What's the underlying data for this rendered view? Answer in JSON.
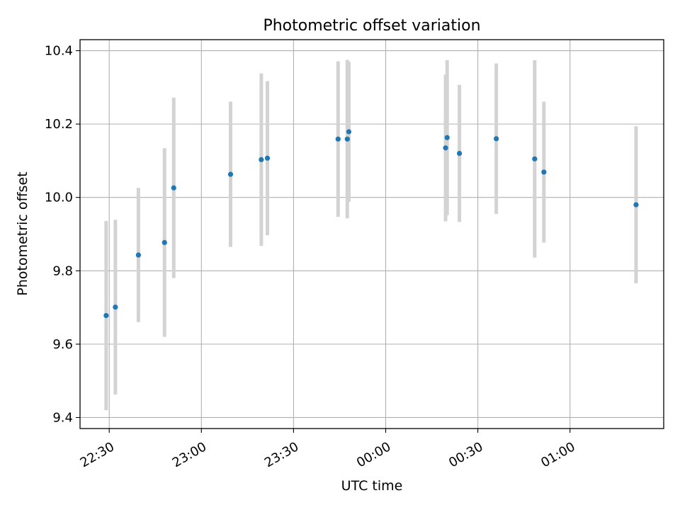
{
  "chart_data": {
    "type": "scatter",
    "title": "Photometric offset variation",
    "xlabel": "UTC time",
    "ylabel": "Photometric offset",
    "x_tick_labels": [
      "22:30",
      "23:00",
      "23:30",
      "00:00",
      "00:30",
      "01:00"
    ],
    "x_tick_times": [
      "2000-01-01T22:30",
      "2000-01-01T23:00",
      "2000-01-01T23:30",
      "2000-01-02T00:00",
      "2000-01-02T00:30",
      "2000-01-02T01:00"
    ],
    "y_tick_labels": [
      "9.4",
      "9.6",
      "9.8",
      "10.0",
      "10.2",
      "10.4"
    ],
    "y_ticks": [
      9.4,
      9.6,
      9.8,
      10.0,
      10.2,
      10.4
    ],
    "xlim": [
      "2000-01-01T22:20:30",
      "2000-01-02T01:30:30"
    ],
    "ylim": [
      9.37,
      10.43
    ],
    "grid": true,
    "marker_color": "#1f77b4",
    "errorbar_color": "#d3d3d3",
    "points": [
      {
        "t": "2000-01-01T22:29:00",
        "y": 9.678,
        "yerr": 0.258
      },
      {
        "t": "2000-01-01T22:32:00",
        "y": 9.701,
        "yerr": 0.238
      },
      {
        "t": "2000-01-01T22:39:30",
        "y": 9.843,
        "yerr": 0.183
      },
      {
        "t": "2000-01-01T22:48:00",
        "y": 9.877,
        "yerr": 0.257
      },
      {
        "t": "2000-01-01T22:51:00",
        "y": 10.026,
        "yerr": 0.246
      },
      {
        "t": "2000-01-01T23:09:30",
        "y": 10.063,
        "yerr": 0.198
      },
      {
        "t": "2000-01-01T23:19:30",
        "y": 10.103,
        "yerr": 0.235
      },
      {
        "t": "2000-01-01T23:21:30",
        "y": 10.107,
        "yerr": 0.21
      },
      {
        "t": "2000-01-01T23:44:30",
        "y": 10.159,
        "yerr": 0.212
      },
      {
        "t": "2000-01-01T23:47:30",
        "y": 10.159,
        "yerr": 0.216
      },
      {
        "t": "2000-01-01T23:48:00",
        "y": 10.179,
        "yerr": 0.191
      },
      {
        "t": "2000-01-02T00:19:30",
        "y": 10.135,
        "yerr": 0.2
      },
      {
        "t": "2000-01-02T00:20:00",
        "y": 10.163,
        "yerr": 0.211
      },
      {
        "t": "2000-01-02T00:24:00",
        "y": 10.12,
        "yerr": 0.187
      },
      {
        "t": "2000-01-02T00:36:00",
        "y": 10.16,
        "yerr": 0.205
      },
      {
        "t": "2000-01-02T00:48:30",
        "y": 10.105,
        "yerr": 0.269
      },
      {
        "t": "2000-01-02T00:51:30",
        "y": 10.069,
        "yerr": 0.192
      },
      {
        "t": "2000-01-02T01:21:30",
        "y": 9.98,
        "yerr": 0.214
      }
    ]
  }
}
